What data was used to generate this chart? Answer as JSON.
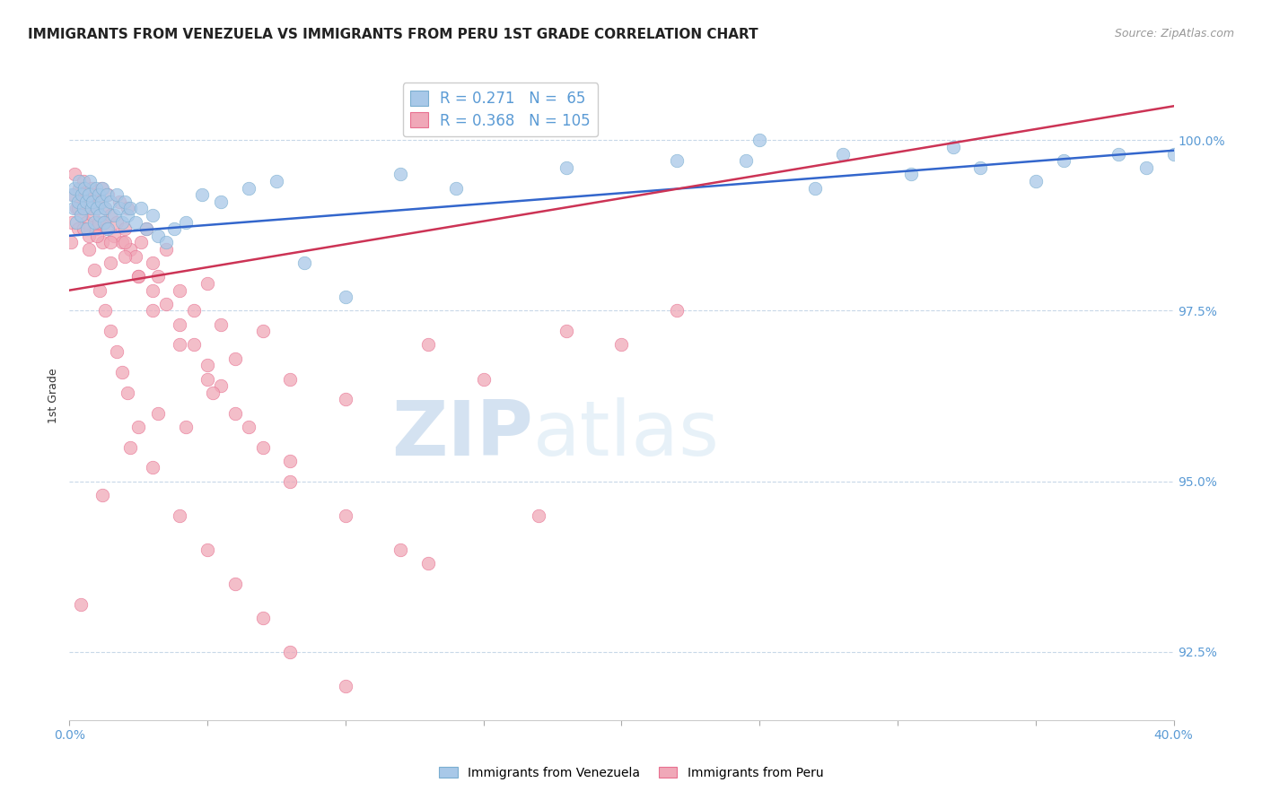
{
  "title": "IMMIGRANTS FROM VENEZUELA VS IMMIGRANTS FROM PERU 1ST GRADE CORRELATION CHART",
  "source": "Source: ZipAtlas.com",
  "ylabel": "1st Grade",
  "xlim": [
    0.0,
    40.0
  ],
  "ylim": [
    91.5,
    101.0
  ],
  "watermark_zip": "ZIP",
  "watermark_atlas": "atlas",
  "venezuela_color": "#a8c8e8",
  "peru_color": "#f0a8b8",
  "venezuela_edge": "#7aaed0",
  "peru_edge": "#e87090",
  "venezuela_line_color": "#3366cc",
  "peru_line_color": "#cc3355",
  "legend_r1": "R = 0.271",
  "legend_n1": "N =  65",
  "legend_r2": "R = 0.368",
  "legend_n2": "N = 105",
  "venezuela_scatter_x": [
    0.1,
    0.15,
    0.2,
    0.25,
    0.3,
    0.35,
    0.4,
    0.45,
    0.5,
    0.55,
    0.6,
    0.65,
    0.7,
    0.75,
    0.8,
    0.85,
    0.9,
    0.95,
    1.0,
    1.05,
    1.1,
    1.15,
    1.2,
    1.25,
    1.3,
    1.35,
    1.4,
    1.5,
    1.6,
    1.7,
    1.8,
    1.9,
    2.0,
    2.1,
    2.2,
    2.4,
    2.6,
    2.8,
    3.0,
    3.2,
    3.5,
    3.8,
    4.2,
    4.8,
    5.5,
    6.5,
    7.5,
    8.5,
    10.0,
    12.0,
    14.0,
    18.0,
    22.0,
    25.0,
    28.0,
    32.0,
    36.0,
    38.0,
    39.0,
    40.0,
    24.5,
    30.5,
    33.0,
    35.0,
    27.0
  ],
  "venezuela_scatter_y": [
    99.2,
    99.0,
    99.3,
    98.8,
    99.1,
    99.4,
    98.9,
    99.2,
    99.0,
    99.3,
    99.1,
    98.7,
    99.2,
    99.4,
    99.0,
    99.1,
    98.8,
    99.3,
    99.0,
    99.2,
    98.9,
    99.1,
    99.3,
    98.8,
    99.0,
    99.2,
    98.7,
    99.1,
    98.9,
    99.2,
    99.0,
    98.8,
    99.1,
    98.9,
    99.0,
    98.8,
    99.0,
    98.7,
    98.9,
    98.6,
    98.5,
    98.7,
    98.8,
    99.2,
    99.1,
    99.3,
    99.4,
    98.2,
    97.7,
    99.5,
    99.3,
    99.6,
    99.7,
    100.0,
    99.8,
    99.9,
    99.7,
    99.8,
    99.6,
    99.8,
    99.7,
    99.5,
    99.6,
    99.4,
    99.3
  ],
  "peru_scatter_x": [
    0.05,
    0.1,
    0.15,
    0.2,
    0.25,
    0.3,
    0.35,
    0.4,
    0.45,
    0.5,
    0.55,
    0.6,
    0.65,
    0.7,
    0.75,
    0.8,
    0.85,
    0.9,
    0.95,
    1.0,
    1.05,
    1.1,
    1.15,
    1.2,
    1.25,
    1.3,
    1.35,
    1.4,
    1.5,
    1.6,
    1.7,
    1.8,
    1.9,
    2.0,
    2.1,
    2.2,
    2.4,
    2.6,
    2.8,
    3.0,
    3.2,
    3.5,
    4.0,
    4.5,
    5.0,
    5.5,
    6.0,
    7.0,
    8.0,
    1.5,
    2.0,
    2.5,
    3.0,
    3.5,
    4.0,
    4.5,
    5.0,
    5.5,
    6.5,
    8.0,
    10.0,
    13.0,
    15.0,
    18.0,
    22.0,
    1.0,
    1.5,
    2.0,
    2.5,
    3.0,
    4.0,
    5.0,
    6.0,
    7.0,
    8.0,
    10.0,
    12.0,
    0.3,
    0.5,
    0.7,
    0.9,
    1.1,
    1.3,
    1.5,
    1.7,
    1.9,
    2.1,
    2.5,
    3.0,
    4.0,
    5.0,
    6.0,
    7.0,
    8.0,
    10.0,
    13.0,
    17.0,
    20.0,
    0.4,
    1.2,
    2.2,
    3.2,
    4.2,
    5.2
  ],
  "peru_scatter_y": [
    98.5,
    98.8,
    99.2,
    99.5,
    99.0,
    98.7,
    99.3,
    99.1,
    98.9,
    99.4,
    99.2,
    98.8,
    99.0,
    98.6,
    99.1,
    99.3,
    98.9,
    99.2,
    98.7,
    99.0,
    98.8,
    99.1,
    99.3,
    98.5,
    98.8,
    99.0,
    98.7,
    99.2,
    98.9,
    98.6,
    98.8,
    99.1,
    98.5,
    98.7,
    99.0,
    98.4,
    98.3,
    98.5,
    98.7,
    98.2,
    98.0,
    98.4,
    97.8,
    97.5,
    97.9,
    97.3,
    96.8,
    97.2,
    96.5,
    98.5,
    98.3,
    98.0,
    97.8,
    97.6,
    97.3,
    97.0,
    96.7,
    96.4,
    95.8,
    95.3,
    96.2,
    97.0,
    96.5,
    97.2,
    97.5,
    98.6,
    98.2,
    98.5,
    98.0,
    97.5,
    97.0,
    96.5,
    96.0,
    95.5,
    95.0,
    94.5,
    94.0,
    99.0,
    98.7,
    98.4,
    98.1,
    97.8,
    97.5,
    97.2,
    96.9,
    96.6,
    96.3,
    95.8,
    95.2,
    94.5,
    94.0,
    93.5,
    93.0,
    92.5,
    92.0,
    93.8,
    94.5,
    97.0,
    93.2,
    94.8,
    95.5,
    96.0,
    95.8,
    96.3
  ],
  "venezuela_trend_x": [
    0.0,
    40.0
  ],
  "venezuela_trend_y": [
    98.6,
    99.85
  ],
  "peru_trend_x": [
    0.0,
    40.0
  ],
  "peru_trend_y": [
    97.8,
    100.5
  ],
  "ytick_positions": [
    92.5,
    95.0,
    97.5,
    100.0
  ],
  "ytick_labels": [
    "92.5%",
    "95.0%",
    "97.5%",
    "100.0%"
  ],
  "xtick_positions": [
    0.0,
    5.0,
    10.0,
    15.0,
    20.0,
    25.0,
    30.0,
    35.0,
    40.0
  ],
  "xtick_labels_show": [
    "0.0%",
    "",
    "",
    "",
    "",
    "",
    "",
    "",
    "40.0%"
  ],
  "grid_color": "#c8d8e8",
  "background_color": "#ffffff",
  "title_fontsize": 11,
  "tick_label_color": "#5b9bd5",
  "legend_text_color": "#5b9bd5",
  "source_color": "#999999"
}
